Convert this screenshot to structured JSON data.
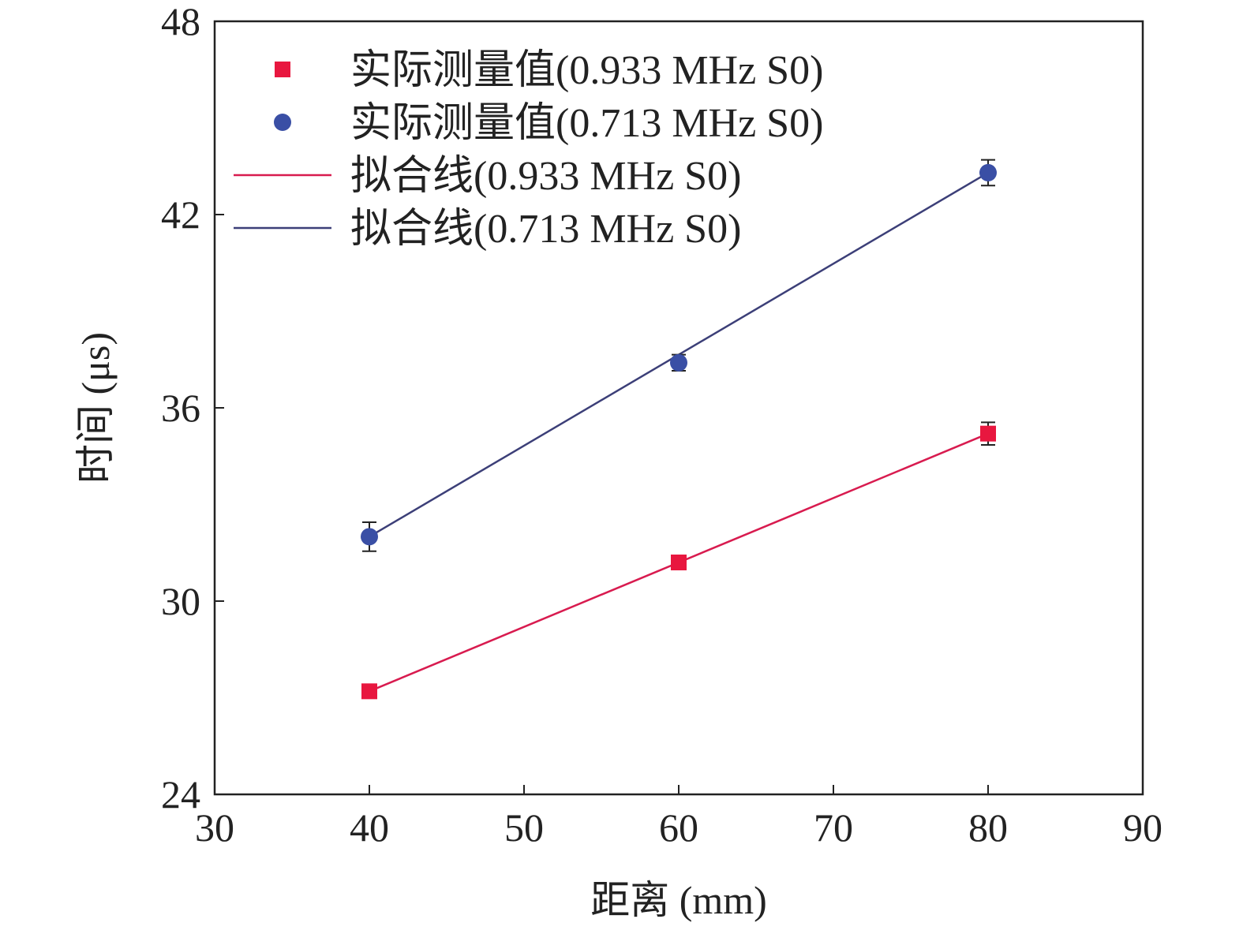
{
  "chart_data": {
    "type": "scatter",
    "xlabel": "距离 (mm)",
    "ylabel": "时间 (μs)",
    "xlim": [
      30,
      90
    ],
    "ylim": [
      24,
      48
    ],
    "xticks": [
      30,
      40,
      50,
      60,
      70,
      80,
      90
    ],
    "yticks": [
      24,
      30,
      36,
      42,
      48
    ],
    "grid": false,
    "legend_position": "top-left",
    "series": [
      {
        "name": "实际测量值(0.933 MHz S0)",
        "kind": "scatter",
        "marker": "square",
        "color": "#e8173f",
        "x": [
          40,
          60,
          80
        ],
        "y": [
          27.2,
          31.2,
          35.2
        ],
        "yerr": [
          0.15,
          0.2,
          0.35
        ]
      },
      {
        "name": "实际测量值(0.713 MHz S0)",
        "kind": "scatter",
        "marker": "circle",
        "color": "#3a4fa5",
        "x": [
          40,
          60,
          80
        ],
        "y": [
          32.0,
          37.4,
          43.3
        ],
        "yerr": [
          0.45,
          0.25,
          0.4
        ]
      },
      {
        "name": "拟合线(0.933 MHz S0)",
        "kind": "line",
        "color": "#d81b4f",
        "x": [
          40,
          80
        ],
        "y": [
          27.2,
          35.2
        ]
      },
      {
        "name": "拟合线(0.713 MHz S0)",
        "kind": "line",
        "color": "#3c3f78",
        "x": [
          40,
          80
        ],
        "y": [
          32.0,
          43.3
        ]
      }
    ]
  }
}
